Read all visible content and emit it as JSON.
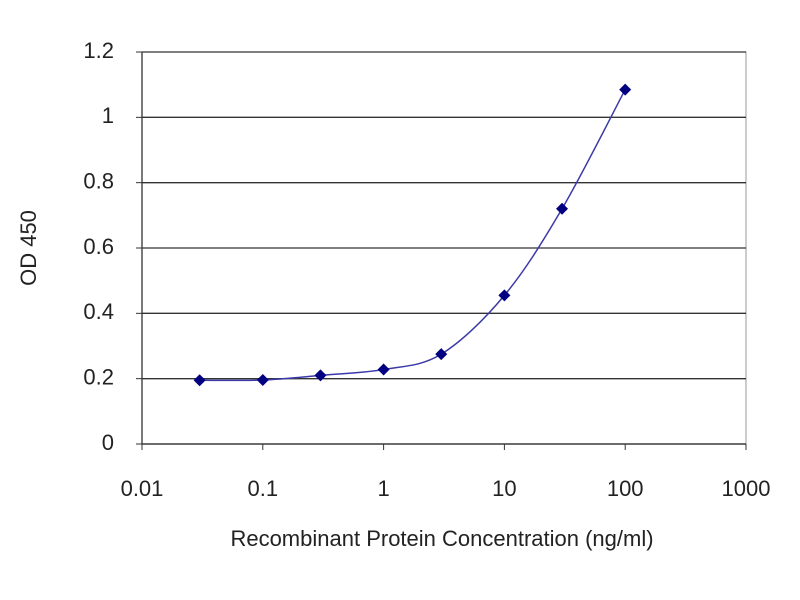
{
  "chart_data": {
    "type": "line",
    "xscale": "log",
    "x": [
      0.03,
      0.1,
      0.3,
      1,
      3,
      10,
      30,
      100
    ],
    "series": [
      {
        "color": "#000080",
        "line_color": "#3a3aa8",
        "values": [
          0.195,
          0.196,
          0.21,
          0.228,
          0.275,
          0.455,
          0.72,
          1.085
        ]
      }
    ],
    "xlim": [
      0.01,
      1000
    ],
    "xticks": [
      0.01,
      0.1,
      1,
      10,
      100,
      1000
    ],
    "ylim": [
      0,
      1.2
    ],
    "yticks": [
      0,
      0.2,
      0.4,
      0.6,
      0.8,
      1,
      1.2
    ],
    "grid": "y",
    "markers": "diamond",
    "xlabel": "Recombinant Protein Concentration (ng/ml)",
    "ylabel": "OD 450"
  }
}
